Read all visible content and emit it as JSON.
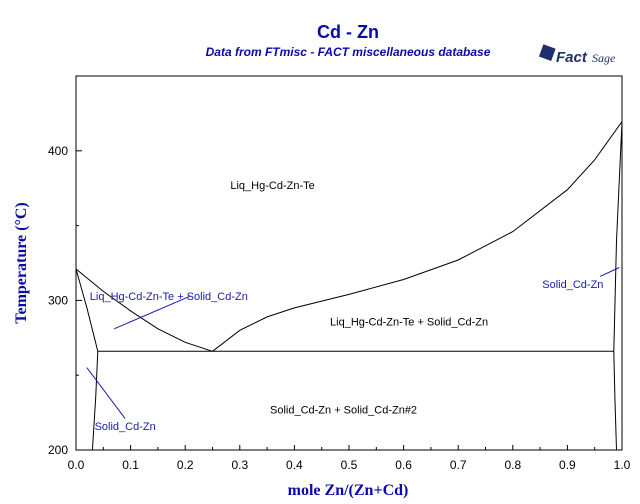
{
  "chart_data": {
    "type": "line",
    "title": "Cd - Zn",
    "subtitle": "Data from FTmisc - FACT miscellaneous database",
    "xlabel": "mole Zn/(Zn+Cd)",
    "ylabel": "Temperature (°C)",
    "xlim": [
      0,
      1
    ],
    "ylim": [
      200,
      450
    ],
    "xticks": [
      "0.0",
      "0.1",
      "0.2",
      "0.3",
      "0.4",
      "0.5",
      "0.6",
      "0.7",
      "0.8",
      "0.9",
      "1.0"
    ],
    "yticks": [
      "200",
      "300",
      "400"
    ],
    "grid": false,
    "curves": [
      {
        "name": "liquidus-cd",
        "x": [
          0.0,
          0.05,
          0.1,
          0.15,
          0.2,
          0.25
        ],
        "y": [
          321,
          306,
          293,
          281,
          272,
          266
        ]
      },
      {
        "name": "liquidus-zn",
        "x": [
          0.25,
          0.3,
          0.35,
          0.4,
          0.5,
          0.6,
          0.7,
          0.8,
          0.9,
          0.95,
          1.0
        ],
        "y": [
          266,
          280,
          289,
          295,
          304,
          314,
          327,
          346,
          374,
          394,
          419.5
        ]
      },
      {
        "name": "solidus-cd-upper",
        "x": [
          0.0,
          0.02,
          0.04
        ],
        "y": [
          321,
          295,
          266
        ]
      },
      {
        "name": "solvus-cd",
        "x": [
          0.04,
          0.036,
          0.03
        ],
        "y": [
          266,
          235,
          200
        ]
      },
      {
        "name": "eutectic",
        "x": [
          0.04,
          0.985
        ],
        "y": [
          266,
          266
        ]
      },
      {
        "name": "solidus-zn",
        "x": [
          0.985,
          0.99,
          1.0
        ],
        "y": [
          266,
          340,
          419.5
        ]
      },
      {
        "name": "solvus-zn",
        "x": [
          0.985,
          0.987,
          0.99
        ],
        "y": [
          266,
          235,
          200
        ]
      }
    ],
    "region_labels": [
      {
        "text": "Liq_Hg-Cd-Zn-Te",
        "x": 0.36,
        "y": 377,
        "color": "#000000"
      },
      {
        "text": "Liq_Hg-Cd-Zn-Te + Solid_Cd-Zn",
        "x": 0.17,
        "y": 303,
        "color": "#1a1ab0",
        "pointer": [
          0.21,
          303,
          0.07,
          281
        ]
      },
      {
        "text": "Liq_Hg-Cd-Zn-Te + Solid_Cd-Zn",
        "x": 0.61,
        "y": 286,
        "color": "#000000"
      },
      {
        "text": "Solid_Cd-Zn",
        "x": 0.91,
        "y": 311,
        "color": "#1a1ab0",
        "pointer": [
          0.96,
          316,
          0.995,
          322
        ]
      },
      {
        "text": "Solid_Cd-Zn + Solid_Cd-Zn#2",
        "x": 0.49,
        "y": 227,
        "color": "#000000"
      },
      {
        "text": "Solid_Cd-Zn",
        "x": 0.09,
        "y": 216,
        "color": "#1a1ab0",
        "pointer": [
          0.09,
          221,
          0.02,
          255
        ]
      }
    ]
  },
  "logo": {
    "word": "Fact",
    "word2": "Sage"
  }
}
